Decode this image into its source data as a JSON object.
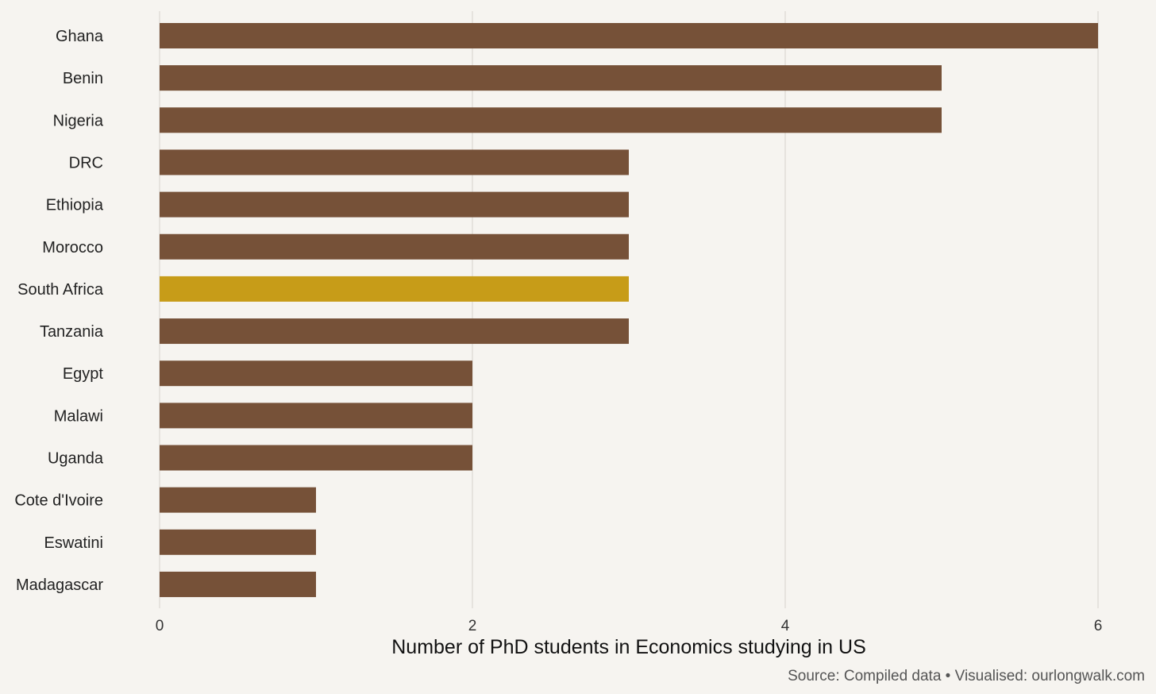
{
  "chart_data": {
    "type": "bar",
    "orientation": "horizontal",
    "categories": [
      "Ghana",
      "Benin",
      "Nigeria",
      "DRC",
      "Ethiopia",
      "Morocco",
      "South Africa",
      "Tanzania",
      "Egypt",
      "Malawi",
      "Uganda",
      "Cote d'Ivoire",
      "Eswatini",
      "Madagascar"
    ],
    "values": [
      6,
      5,
      5,
      3,
      3,
      3,
      3,
      3,
      2,
      2,
      2,
      1,
      1,
      1
    ],
    "highlight": "South Africa",
    "xlabel": "Number of PhD students in Economics studying in US",
    "xlim": [
      0,
      6
    ],
    "xticks": [
      0,
      2,
      4,
      6
    ],
    "grid": "vertical",
    "caption": "Source: Compiled data • Visualised: ourlongwalk.com",
    "colors": {
      "bar": "#765138",
      "highlight": "#c79c18",
      "background": "#f6f4f0",
      "grid": "#e6e3de"
    }
  }
}
